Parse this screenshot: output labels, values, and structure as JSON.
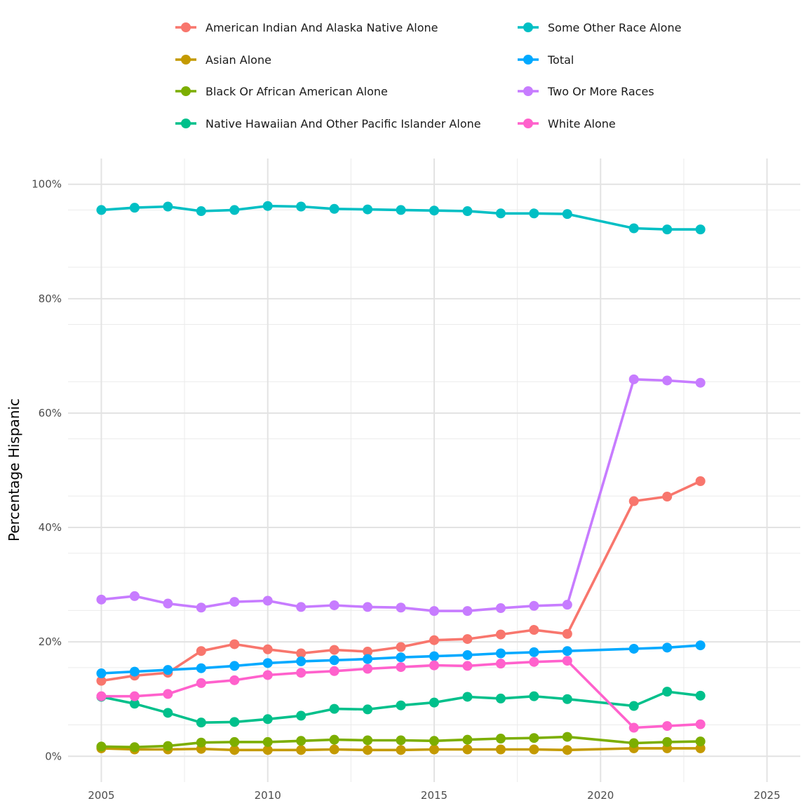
{
  "chart_data": {
    "type": "line",
    "ylabel": "Percentage Hispanic",
    "xlabel": "",
    "xlim": [
      2004,
      2026
    ],
    "ylim": [
      -4.5,
      104.5
    ],
    "x_ticks": [
      2005,
      2010,
      2015,
      2020,
      2025
    ],
    "x_tick_labels": [
      "2005",
      "2010",
      "2015",
      "2020",
      "2025"
    ],
    "y_ticks": [
      0,
      20,
      40,
      60,
      80,
      100
    ],
    "y_tick_labels": [
      "0%",
      "20%",
      "40%",
      "60%",
      "80%",
      "100%"
    ],
    "grid": true,
    "legend_placement": "top",
    "years": [
      2005,
      2006,
      2007,
      2008,
      2009,
      2010,
      2011,
      2012,
      2013,
      2014,
      2015,
      2016,
      2017,
      2018,
      2019,
      2021,
      2022,
      2023
    ],
    "series": [
      {
        "name": "American Indian And Alaska Native Alone",
        "color": "#F8766D",
        "values": [
          13.2,
          14.1,
          14.6,
          18.4,
          19.6,
          18.7,
          18.0,
          18.6,
          18.3,
          19.1,
          20.3,
          20.5,
          21.3,
          22.1,
          21.4,
          44.6,
          45.4,
          48.1
        ]
      },
      {
        "name": "Asian Alone",
        "color": "#C49A00",
        "values": [
          1.4,
          1.2,
          1.2,
          1.3,
          1.1,
          1.1,
          1.1,
          1.2,
          1.1,
          1.1,
          1.2,
          1.2,
          1.2,
          1.2,
          1.1,
          1.4,
          1.4,
          1.4
        ]
      },
      {
        "name": "Black Or African American Alone",
        "color": "#7CAE00",
        "values": [
          1.7,
          1.6,
          1.8,
          2.4,
          2.5,
          2.5,
          2.7,
          2.9,
          2.8,
          2.8,
          2.7,
          2.9,
          3.1,
          3.2,
          3.4,
          2.3,
          2.5,
          2.6
        ]
      },
      {
        "name": "Native Hawaiian And Other Pacific Islander Alone",
        "color": "#00C08B",
        "values": [
          10.4,
          9.2,
          7.6,
          5.9,
          6.0,
          6.5,
          7.1,
          8.3,
          8.2,
          8.9,
          9.4,
          10.4,
          10.1,
          10.5,
          10.0,
          8.8,
          11.3,
          10.6
        ]
      },
      {
        "name": "Some Other Race Alone",
        "color": "#00BFC4",
        "values": [
          95.5,
          95.9,
          96.1,
          95.3,
          95.5,
          96.2,
          96.1,
          95.7,
          95.6,
          95.5,
          95.4,
          95.3,
          94.9,
          94.9,
          94.8,
          92.3,
          92.1,
          92.1
        ]
      },
      {
        "name": "Total",
        "color": "#00A9FF",
        "values": [
          14.5,
          14.8,
          15.1,
          15.4,
          15.8,
          16.3,
          16.6,
          16.8,
          17.0,
          17.3,
          17.5,
          17.7,
          18.0,
          18.2,
          18.4,
          18.8,
          19.0,
          19.4
        ]
      },
      {
        "name": "Two Or More Races",
        "color": "#C77CFF",
        "values": [
          27.4,
          28.0,
          26.7,
          26.0,
          27.0,
          27.2,
          26.1,
          26.4,
          26.1,
          26.0,
          25.4,
          25.4,
          25.9,
          26.3,
          26.5,
          65.9,
          65.7,
          65.3
        ]
      },
      {
        "name": "White Alone",
        "color": "#FF61CC",
        "values": [
          10.5,
          10.5,
          10.9,
          12.8,
          13.3,
          14.2,
          14.6,
          14.9,
          15.3,
          15.6,
          15.9,
          15.8,
          16.2,
          16.5,
          16.7,
          5.0,
          5.3,
          5.6
        ]
      }
    ]
  }
}
